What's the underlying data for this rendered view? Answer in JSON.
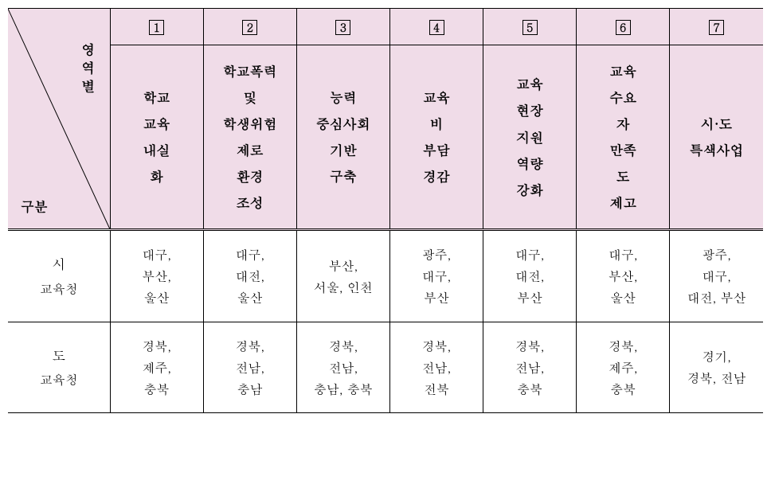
{
  "diagonal": {
    "top_label": "영역별",
    "bottom_label": "구분"
  },
  "column_numbers": [
    "1",
    "2",
    "3",
    "4",
    "5",
    "6",
    "7"
  ],
  "column_headers": [
    "학교\n교육\n내실\n화",
    "학교폭력\n및\n학생위험\n제로\n환경\n조성",
    "능력\n중심사회\n기반\n구축",
    "교육\n비\n부담\n경감",
    "교육\n현장\n지원\n역량\n강화",
    "교육\n수요\n자\n만족\n도\n제고",
    "시·도\n특색사업"
  ],
  "rows": [
    {
      "label_main": "시",
      "label_sub": "교육청",
      "cells": [
        "대구,\n부산,\n울산",
        "대구,\n대전,\n울산",
        "부산,\n서울, 인천",
        "광주,\n대구,\n부산",
        "대구,\n대전,\n부산",
        "대구,\n부산,\n울산",
        "광주,\n대구,\n대전, 부산"
      ]
    },
    {
      "label_main": "도",
      "label_sub": "교육청",
      "cells": [
        "경북,\n제주,\n충북",
        "경북,\n전남,\n충남",
        "경북,\n전남,\n충남, 충북",
        "경북,\n전남,\n전북",
        "경북,\n전남,\n충북",
        "경북,\n제주,\n충북",
        "경기,\n경북, 전남"
      ]
    }
  ]
}
